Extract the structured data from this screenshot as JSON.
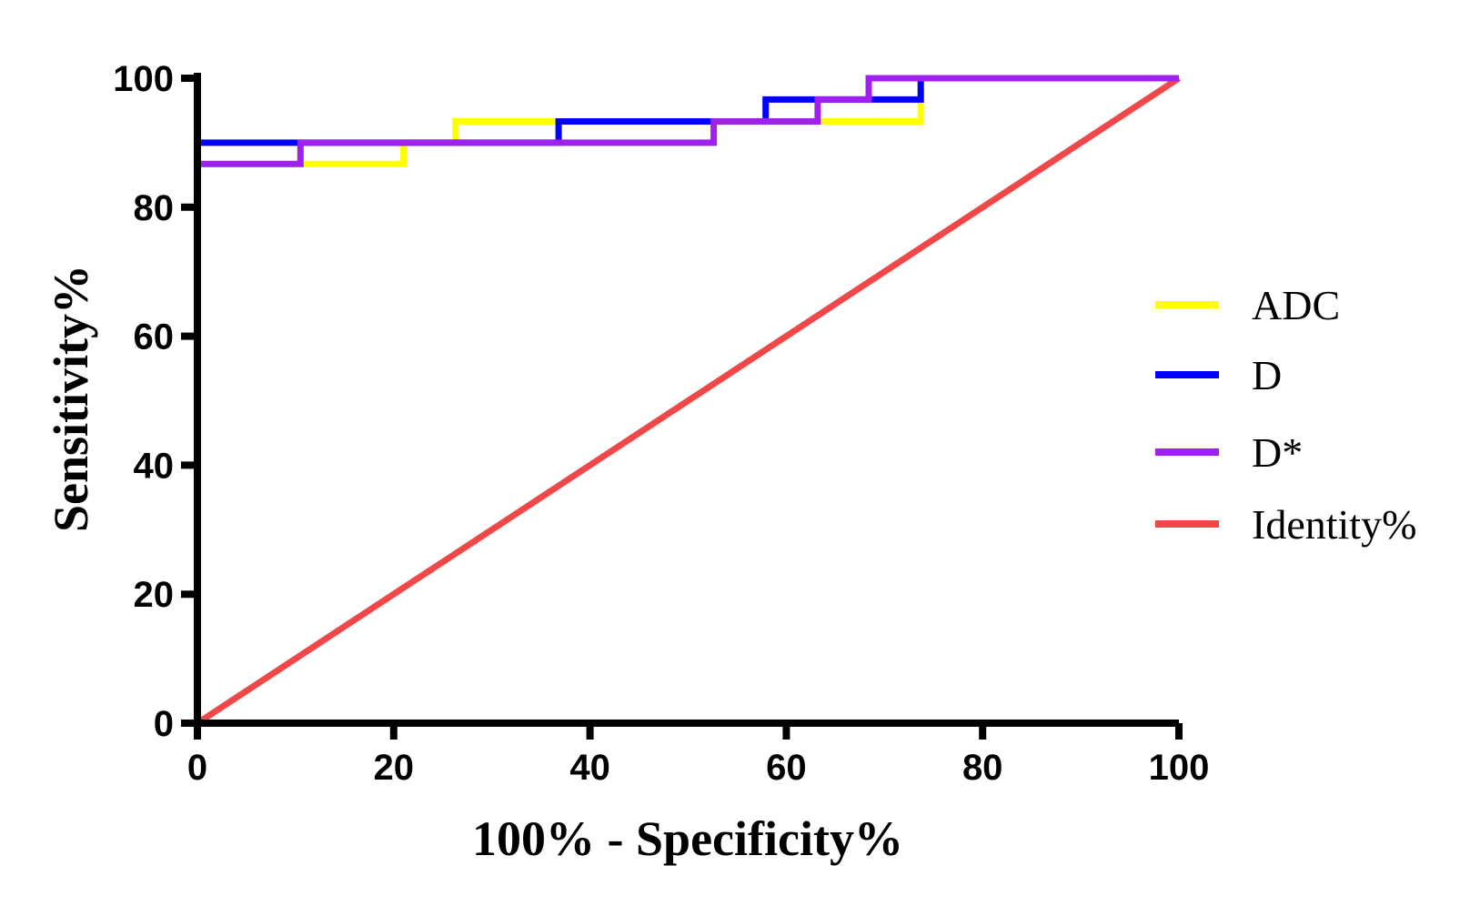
{
  "chart_data": {
    "type": "line",
    "title": "",
    "xlabel": "100% - Specificity%",
    "ylabel": "Sensitivity%",
    "xlim": [
      0,
      100
    ],
    "ylim": [
      0,
      100
    ],
    "xticks": [
      0,
      20,
      40,
      60,
      80,
      100
    ],
    "yticks": [
      0,
      20,
      40,
      60,
      80,
      100
    ],
    "grid": false,
    "legend_position": "right",
    "series": [
      {
        "name": "ADC",
        "color": "#ffff00",
        "x": [
          0,
          0,
          10.5,
          10.5,
          21,
          21,
          26.3,
          26.3,
          36.8,
          36.8,
          57.9,
          57.9,
          73.7,
          73.7,
          100
        ],
        "y": [
          0,
          90,
          90,
          86.7,
          86.7,
          90,
          90,
          93.3,
          93.3,
          93.3,
          93.3,
          93.3,
          93.3,
          100,
          100
        ]
      },
      {
        "name": "D",
        "color": "#0000ff",
        "x": [
          0,
          0,
          10.5,
          10.5,
          36.8,
          36.8,
          57.9,
          57.9,
          73.7,
          73.7,
          100
        ],
        "y": [
          0,
          90,
          90,
          90,
          90,
          93.3,
          93.3,
          96.7,
          96.7,
          100,
          100
        ]
      },
      {
        "name": "D*",
        "color": "#a020f0",
        "x": [
          0,
          0,
          10.5,
          10.5,
          52.6,
          52.6,
          63.2,
          63.2,
          68.4,
          68.4,
          100
        ],
        "y": [
          0,
          86.7,
          86.7,
          90,
          90,
          93.3,
          93.3,
          96.7,
          96.7,
          100,
          100
        ]
      },
      {
        "name": "Identity%",
        "color": "#f04848",
        "x": [
          0,
          100
        ],
        "y": [
          0,
          100
        ]
      }
    ]
  }
}
